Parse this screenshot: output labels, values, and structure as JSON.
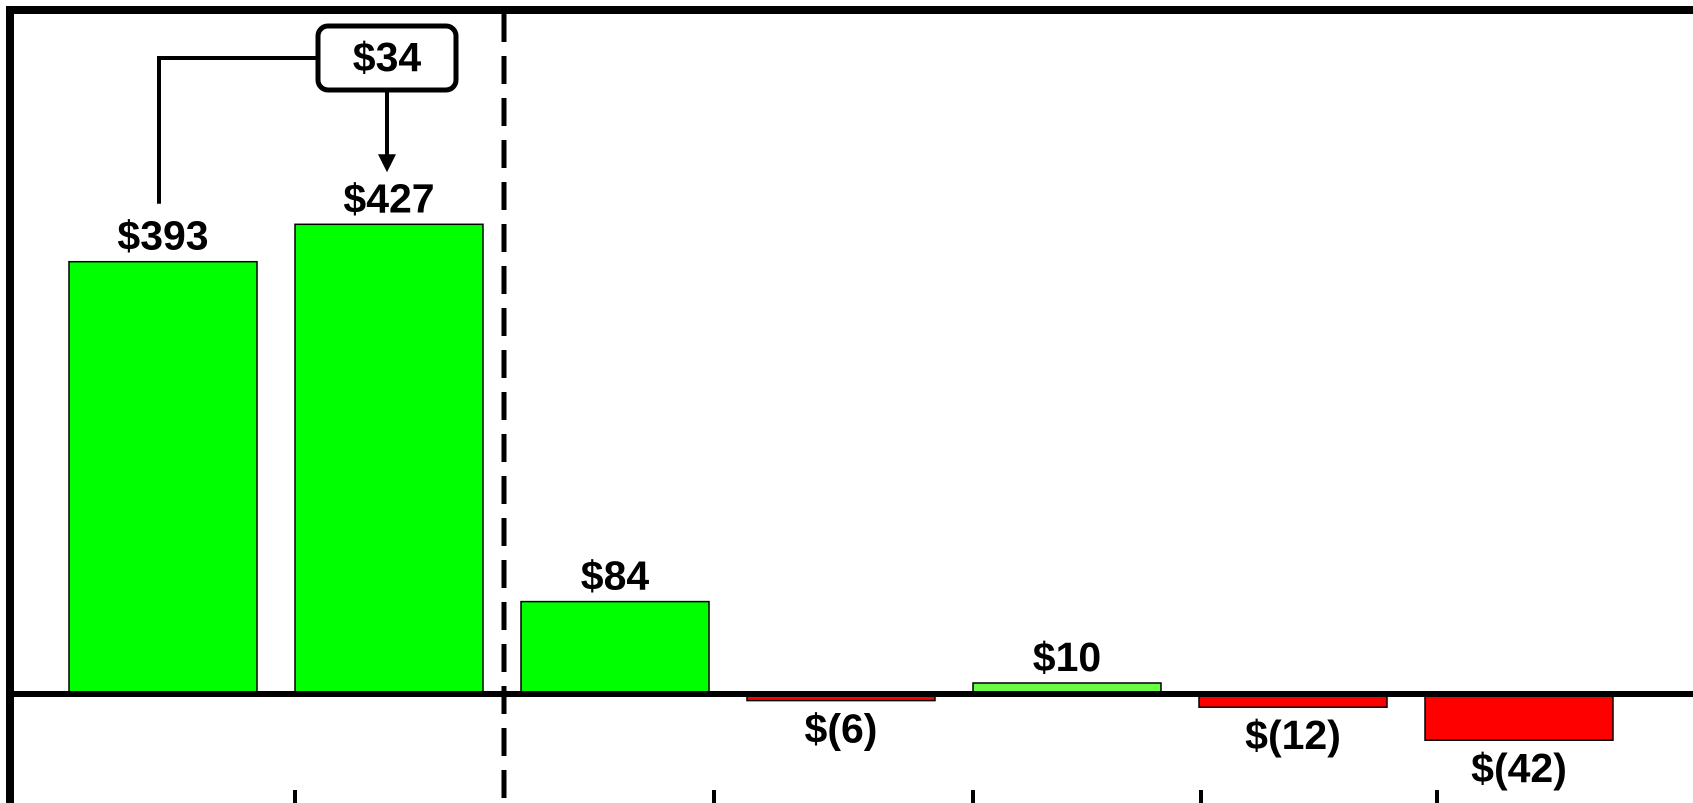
{
  "chart_data": {
    "type": "bar",
    "title": "",
    "xlabel": "",
    "ylabel": "",
    "ylim": [
      -60,
      460
    ],
    "grid": false,
    "values": [
      393,
      427,
      84,
      -6,
      10,
      -12,
      -42
    ],
    "labels": [
      "$393",
      "$427",
      "$84",
      "$(6)",
      "$10",
      "$(12)",
      "$(42)"
    ],
    "colors": [
      "#00ff00",
      "#00ff00",
      "#00ff00",
      "#ff0000",
      "#66ff44",
      "#ff0000",
      "#ff0000"
    ],
    "callout": {
      "label": "$34",
      "from_bar": 0,
      "to_bar": 1,
      "value": 34
    },
    "divider": {
      "after_bar": 1,
      "style": "dashed"
    }
  }
}
